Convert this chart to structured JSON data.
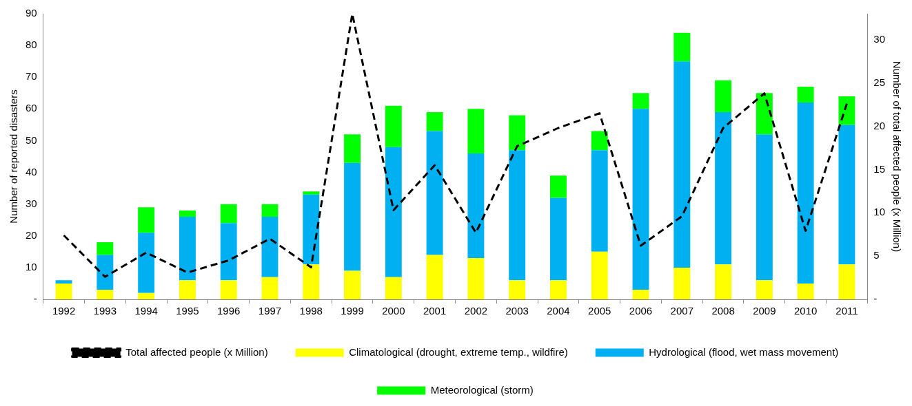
{
  "chart_data": {
    "type": "bar",
    "stacked": true,
    "ylabel": "Number of reported disasters",
    "y2label": "Number of total affected people (x Million)",
    "categories": [
      "1992",
      "1993",
      "1994",
      "1995",
      "1996",
      "1997",
      "1998",
      "1999",
      "2000",
      "2001",
      "2002",
      "2003",
      "2004",
      "2005",
      "2006",
      "2007",
      "2008",
      "2009",
      "2010",
      "2011"
    ],
    "series": [
      {
        "name": "Climatological (drought, extreme temp., wildfire)",
        "color": "#ffff00",
        "values": [
          5,
          3,
          2,
          6,
          6,
          7,
          11,
          9,
          7,
          14,
          13,
          6,
          6,
          15,
          3,
          10,
          11,
          6,
          5,
          11
        ]
      },
      {
        "name": "Hydrological (flood, wet mass movement)",
        "color": "#00b0f0",
        "values": [
          1,
          11,
          19,
          20,
          18,
          19,
          22,
          34,
          41,
          39,
          33,
          41,
          26,
          32,
          57,
          65,
          48,
          46,
          57,
          44
        ]
      },
      {
        "name": "Meteorological (storm)",
        "color": "#00ff00",
        "values": [
          0,
          4,
          8,
          2,
          6,
          4,
          1,
          9,
          13,
          6,
          14,
          11,
          7,
          6,
          5,
          9,
          10,
          13,
          5,
          9
        ]
      },
      {
        "name": "Total affected people (x Million)",
        "type": "line",
        "axis": "y2",
        "color": "#000000",
        "line_style": "dashed",
        "marker": "none",
        "values": [
          7.4,
          2.6,
          5.4,
          3.1,
          4.5,
          7.0,
          3.7,
          33,
          10.3,
          15.5,
          7.7,
          17.7,
          19.8,
          21.5,
          6.2,
          9.6,
          19.8,
          23.8,
          7.9,
          22.6
        ]
      }
    ],
    "ylim": [
      0,
      90
    ],
    "yticks": [
      {
        "value": 0,
        "label": "-"
      },
      10,
      20,
      30,
      40,
      50,
      60,
      70,
      80,
      90
    ],
    "y2lim": [
      0,
      33
    ],
    "y2ticks": [
      {
        "value": 0,
        "label": "-"
      },
      5,
      10,
      15,
      20,
      25,
      30
    ],
    "grid": false,
    "legend": "bottom"
  }
}
